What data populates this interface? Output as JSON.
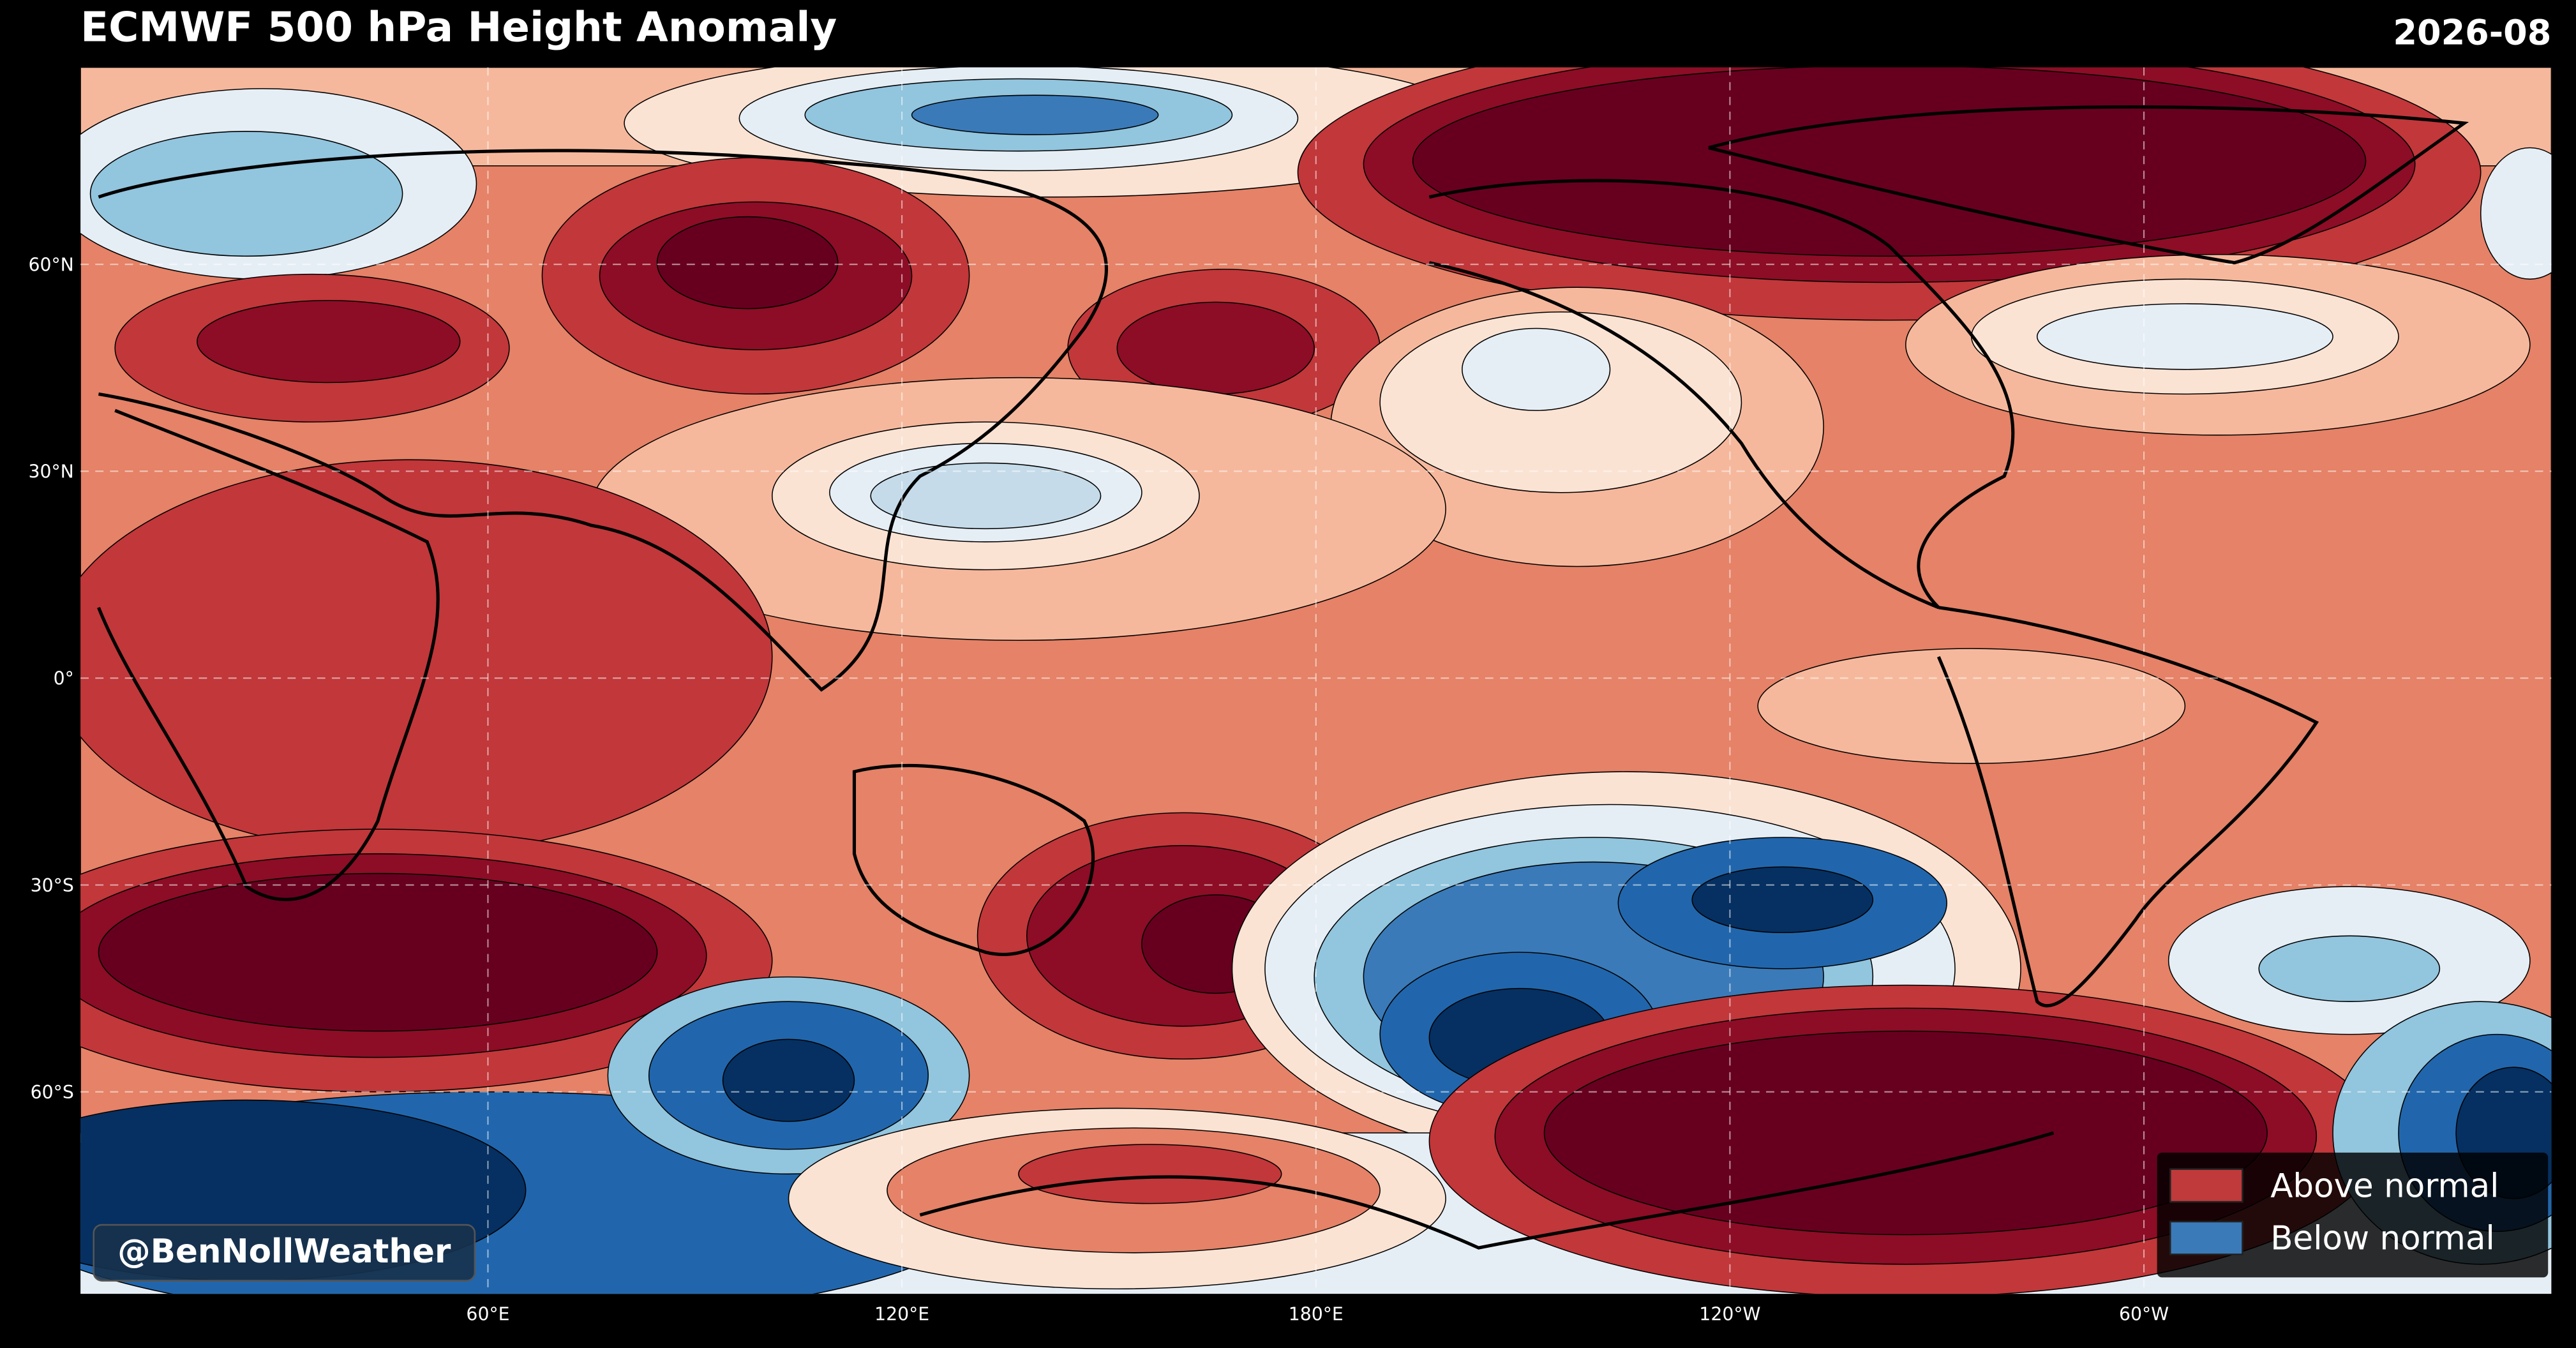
{
  "header": {
    "title": "ECMWF 500 hPa Height Anomaly",
    "date": "2026-08"
  },
  "map": {
    "xlim": [
      0,
      360
    ],
    "ylim": [
      -90,
      90
    ],
    "grid": true,
    "lat_ticks": [
      {
        "value": 60,
        "label": "60°N"
      },
      {
        "value": 30,
        "label": "30°N"
      },
      {
        "value": 0,
        "label": "0°"
      },
      {
        "value": -30,
        "label": "30°S"
      },
      {
        "value": -60,
        "label": "60°S"
      }
    ],
    "lon_ticks": [
      {
        "value": 60,
        "label": "60°E"
      },
      {
        "value": 120,
        "label": "120°E"
      },
      {
        "value": 180,
        "label": "180°E"
      },
      {
        "value": 240,
        "label": "120°W"
      },
      {
        "value": 300,
        "label": "60°W"
      }
    ]
  },
  "legend": {
    "position": "lower right",
    "items": [
      {
        "label": "Above normal",
        "color": "#c0393b"
      },
      {
        "label": "Below normal",
        "color": "#3a7ab8"
      }
    ]
  },
  "watermark": "@BenNollWeather"
}
